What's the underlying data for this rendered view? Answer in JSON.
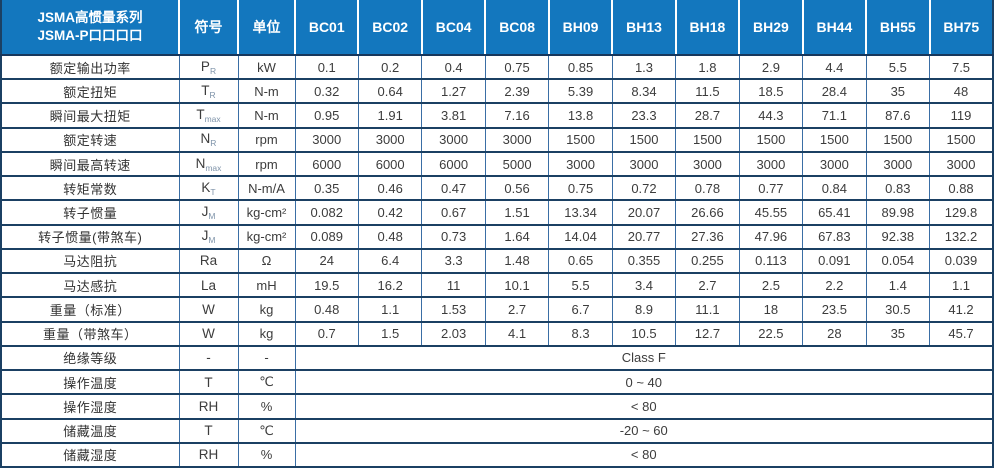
{
  "header": {
    "title_line1": "JSMA高惯量系列",
    "title_line2": "JSMA-P口口口口",
    "symbol_col": "符号",
    "unit_col": "单位",
    "models": [
      "BC01",
      "BC02",
      "BC04",
      "BC08",
      "BH09",
      "BH13",
      "BH18",
      "BH29",
      "BH44",
      "BH55",
      "BH75"
    ]
  },
  "colors": {
    "header_bg": "#1377be",
    "border_dark": "#1b4063",
    "border_light": "#3a6ea5",
    "header_text": "#ffffff",
    "body_text": "#3c3c3c"
  },
  "table": {
    "rows": [
      {
        "label": "额定输出功率",
        "symbol": "P",
        "symbol_sub": "R",
        "unit": "kW",
        "values": [
          "0.1",
          "0.2",
          "0.4",
          "0.75",
          "0.85",
          "1.3",
          "1.8",
          "2.9",
          "4.4",
          "5.5",
          "7.5"
        ]
      },
      {
        "label": "额定扭矩",
        "symbol": "T",
        "symbol_sub": "R",
        "unit": "N-m",
        "values": [
          "0.32",
          "0.64",
          "1.27",
          "2.39",
          "5.39",
          "8.34",
          "11.5",
          "18.5",
          "28.4",
          "35",
          "48"
        ]
      },
      {
        "label": "瞬间最大扭矩",
        "symbol": "T",
        "symbol_sub": "max",
        "unit": "N-m",
        "values": [
          "0.95",
          "1.91",
          "3.81",
          "7.16",
          "13.8",
          "23.3",
          "28.7",
          "44.3",
          "71.1",
          "87.6",
          "119"
        ]
      },
      {
        "label": "额定转速",
        "symbol": "N",
        "symbol_sub": "R",
        "unit": "rpm",
        "values": [
          "3000",
          "3000",
          "3000",
          "3000",
          "1500",
          "1500",
          "1500",
          "1500",
          "1500",
          "1500",
          "1500"
        ]
      },
      {
        "label": "瞬间最高转速",
        "symbol": "N",
        "symbol_sub": "max",
        "unit": "rpm",
        "values": [
          "6000",
          "6000",
          "6000",
          "5000",
          "3000",
          "3000",
          "3000",
          "3000",
          "3000",
          "3000",
          "3000"
        ]
      },
      {
        "label": "转矩常数",
        "symbol": "K",
        "symbol_sub": "T",
        "unit": "N-m/A",
        "values": [
          "0.35",
          "0.46",
          "0.47",
          "0.56",
          "0.75",
          "0.72",
          "0.78",
          "0.77",
          "0.84",
          "0.83",
          "0.88"
        ]
      },
      {
        "label": "转子惯量",
        "symbol": "J",
        "symbol_sub": "M",
        "unit": "kg-cm²",
        "values": [
          "0.082",
          "0.42",
          "0.67",
          "1.51",
          "13.34",
          "20.07",
          "26.66",
          "45.55",
          "65.41",
          "89.98",
          "129.8"
        ]
      },
      {
        "label": "转子惯量(带煞车)",
        "symbol": "J",
        "symbol_sub": "M",
        "unit": "kg-cm²",
        "values": [
          "0.089",
          "0.48",
          "0.73",
          "1.64",
          "14.04",
          "20.77",
          "27.36",
          "47.96",
          "67.83",
          "92.38",
          "132.2"
        ]
      },
      {
        "label": "马达阻抗",
        "symbol": "Ra",
        "symbol_sub": "",
        "unit": "Ω",
        "values": [
          "24",
          "6.4",
          "3.3",
          "1.48",
          "0.65",
          "0.355",
          "0.255",
          "0.113",
          "0.091",
          "0.054",
          "0.039"
        ]
      },
      {
        "label": "马达感抗",
        "symbol": "La",
        "symbol_sub": "",
        "unit": "mH",
        "values": [
          "19.5",
          "16.2",
          "11",
          "10.1",
          "5.5",
          "3.4",
          "2.7",
          "2.5",
          "2.2",
          "1.4",
          "1.1"
        ]
      },
      {
        "label": "重量（标准）",
        "symbol": "W",
        "symbol_sub": "",
        "unit": "kg",
        "values": [
          "0.48",
          "1.1",
          "1.53",
          "2.7",
          "6.7",
          "8.9",
          "11.1",
          "18",
          "23.5",
          "30.5",
          "41.2"
        ]
      },
      {
        "label": "重量（带煞车）",
        "symbol": "W",
        "symbol_sub": "",
        "unit": "kg",
        "values": [
          "0.7",
          "1.5",
          "2.03",
          "4.1",
          "8.3",
          "10.5",
          "12.7",
          "22.5",
          "28",
          "35",
          "45.7"
        ]
      },
      {
        "label": "绝缘等级",
        "symbol": "-",
        "symbol_sub": "",
        "unit": "-",
        "merged_value": "Class F"
      },
      {
        "label": "操作温度",
        "symbol": "T",
        "symbol_sub": "",
        "unit": "℃",
        "merged_value": "0 ~ 40"
      },
      {
        "label": "操作湿度",
        "symbol": "RH",
        "symbol_sub": "",
        "unit": "%",
        "merged_value": "< 80"
      },
      {
        "label": "储藏温度",
        "symbol": "T",
        "symbol_sub": "",
        "unit": "℃",
        "merged_value": "-20 ~ 60"
      },
      {
        "label": "储藏湿度",
        "symbol": "RH",
        "symbol_sub": "",
        "unit": "%",
        "merged_value": "< 80"
      }
    ]
  }
}
